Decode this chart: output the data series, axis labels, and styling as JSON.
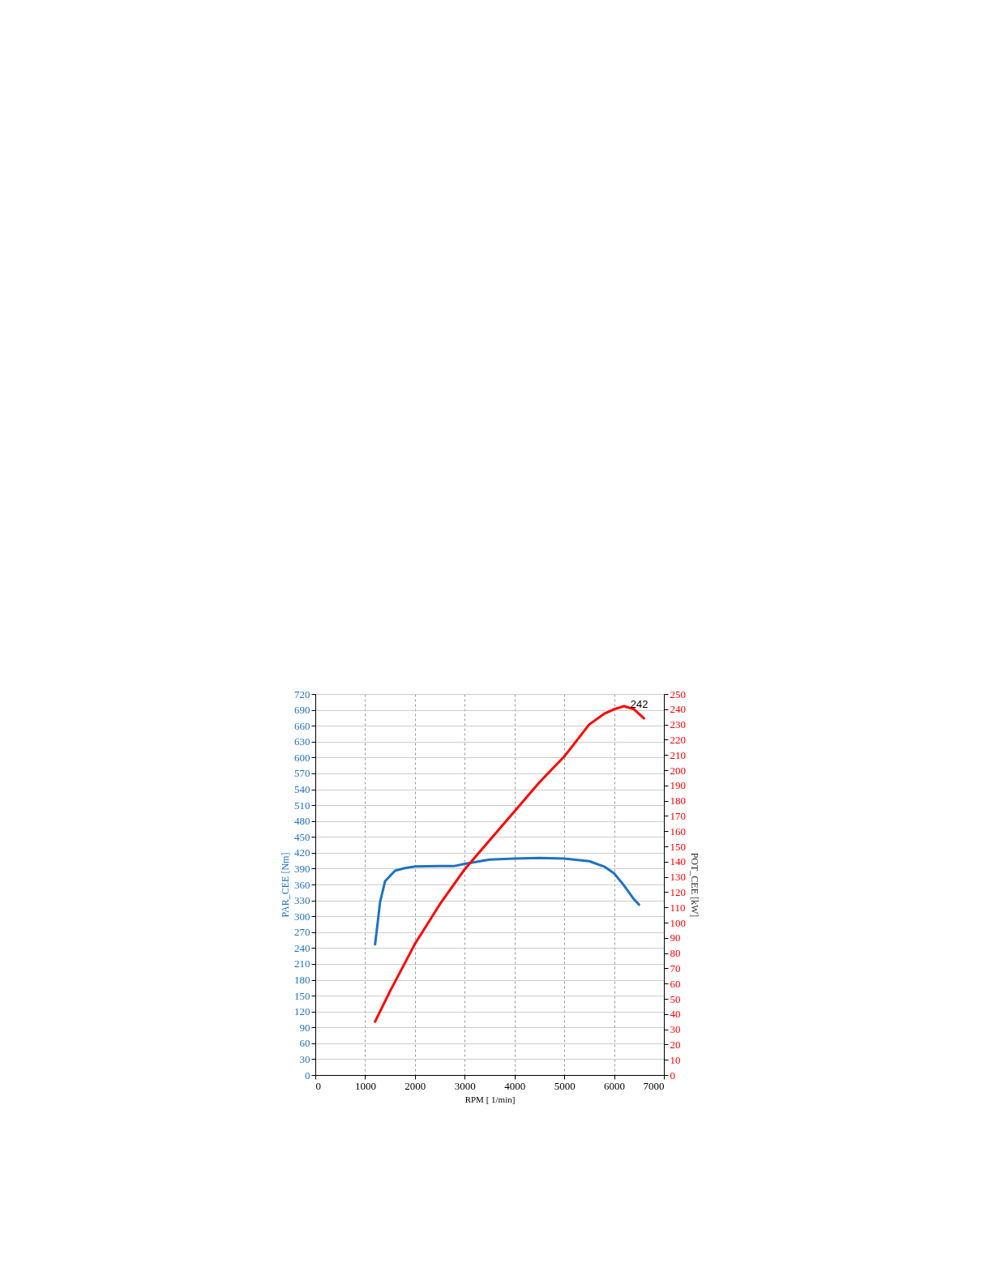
{
  "chart_data": {
    "type": "line",
    "xlabel": "RPM [ 1/min]",
    "ylabel": "PAR_CEE [Nm]",
    "y2label": "POT_CEE [kW]",
    "xlim": [
      0,
      7000
    ],
    "xticks": [
      0,
      1000,
      2000,
      3000,
      4000,
      5000,
      6000,
      7000
    ],
    "ylim": [
      0,
      720
    ],
    "yticks": [
      0,
      30,
      60,
      90,
      120,
      150,
      180,
      210,
      240,
      270,
      300,
      330,
      360,
      390,
      420,
      450,
      480,
      510,
      540,
      570,
      600,
      630,
      660,
      690,
      720
    ],
    "y2lim": [
      0,
      250
    ],
    "y2ticks": [
      0,
      10,
      20,
      30,
      40,
      50,
      60,
      70,
      80,
      90,
      100,
      110,
      120,
      130,
      140,
      150,
      160,
      170,
      180,
      190,
      200,
      210,
      220,
      230,
      240,
      250
    ],
    "grid": true,
    "line_style": "solid",
    "series": [
      {
        "color": "#1f72c0",
        "x": [
          1200,
          1250,
          1300,
          1400,
          1600,
          1800,
          2000,
          2500,
          2800,
          3000,
          3500,
          4000,
          4500,
          5000,
          5500,
          5800,
          6000,
          6200,
          6400,
          6500
        ],
        "values": [
          247,
          286,
          327,
          366,
          386,
          391,
          394,
          395,
          395,
          399,
          407,
          409,
          410,
          409,
          404,
          394,
          381,
          358,
          332,
          322
        ]
      },
      {
        "color": "#ff0000",
        "axis": "y2",
        "x": [
          1200,
          1500,
          2000,
          2500,
          3000,
          3500,
          4000,
          4500,
          5000,
          5500,
          5800,
          6000,
          6200,
          6400,
          6600
        ],
        "values": [
          35,
          55,
          86,
          112,
          135,
          154,
          173,
          192,
          209,
          230,
          237,
          240,
          242,
          240,
          234
        ]
      }
    ],
    "annotations": [
      "242"
    ]
  }
}
